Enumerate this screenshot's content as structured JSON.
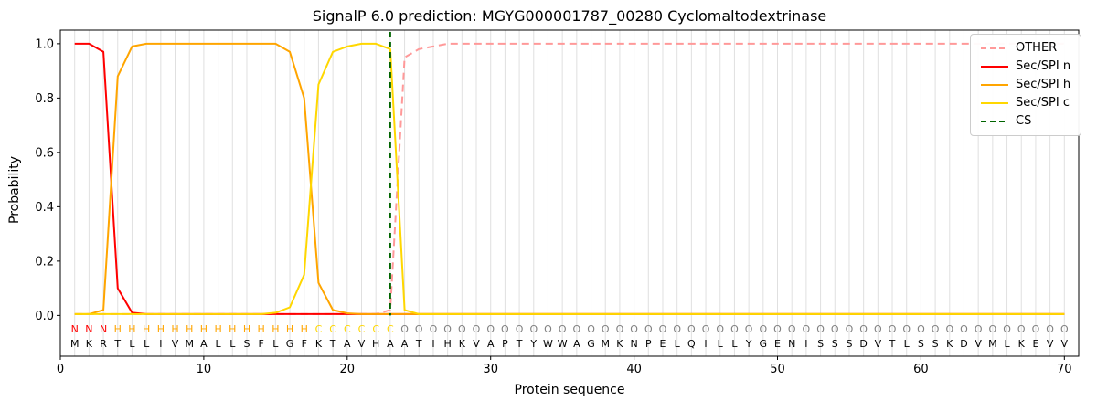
{
  "chart_data": {
    "type": "line",
    "title": "SignalP 6.0 prediction: MGYG000001787_00280 Cyclomaltodextrinase",
    "xlabel": "Protein sequence",
    "ylabel": "Probability",
    "xlim": [
      0,
      71
    ],
    "ylim": [
      -0.15,
      1.05
    ],
    "xticks": [
      0,
      10,
      20,
      30,
      40,
      50,
      60,
      70
    ],
    "yticks": [
      0.0,
      0.2,
      0.4,
      0.6,
      0.8,
      1.0
    ],
    "grid": "vertical line at every residue position",
    "legend_position": "upper right",
    "sequence": "MKRTLLIVMALLSFLGFKTAVHAATIHKVAPTYWWAGMKNPELQILLYGENISSSDVTLSSKDVMLKEVV",
    "region_labels": "NNNHHHHHHHHHHHHHHCCCCCCOOOOOOOOOOOOOOOOOOOOOOOOOOOOOOOOOOOOOOOOOOOOOO",
    "region_colors": {
      "N": "#ff0000",
      "H": "#ffa500",
      "C": "#ffd700",
      "O": "#808080"
    },
    "colors": {
      "grid": "#e0e0e0",
      "axis": "#000000",
      "sequence_text": "#000000"
    },
    "series": [
      {
        "name": "OTHER",
        "color": "#ff9999",
        "style": "dashed",
        "values": [
          0.005,
          0.005,
          0.005,
          0.005,
          0.005,
          0.005,
          0.005,
          0.005,
          0.005,
          0.005,
          0.005,
          0.005,
          0.005,
          0.005,
          0.005,
          0.005,
          0.005,
          0.005,
          0.005,
          0.005,
          0.005,
          0.005,
          0.02,
          0.95,
          0.98,
          0.99,
          1.0,
          1.0,
          1.0,
          1.0,
          1.0,
          1.0,
          1.0,
          1.0,
          1.0,
          1.0,
          1.0,
          1.0,
          1.0,
          1.0,
          1.0,
          1.0,
          1.0,
          1.0,
          1.0,
          1.0,
          1.0,
          1.0,
          1.0,
          1.0,
          1.0,
          1.0,
          1.0,
          1.0,
          1.0,
          1.0,
          1.0,
          1.0,
          1.0,
          1.0,
          1.0,
          1.0,
          1.0,
          1.0,
          1.0,
          1.0,
          1.0,
          1.0,
          1.0,
          1.0
        ]
      },
      {
        "name": "Sec/SPI n",
        "color": "#ff0000",
        "style": "solid",
        "values": [
          1.0,
          1.0,
          0.97,
          0.1,
          0.01,
          0.005,
          0.005,
          0.005,
          0.005,
          0.005,
          0.005,
          0.005,
          0.005,
          0.005,
          0.005,
          0.005,
          0.005,
          0.005,
          0.005,
          0.005,
          0.005,
          0.005,
          0.005,
          0.005,
          0.005,
          0.005,
          0.005,
          0.005,
          0.005,
          0.005,
          0.005,
          0.005,
          0.005,
          0.005,
          0.005,
          0.005,
          0.005,
          0.005,
          0.005,
          0.005,
          0.005,
          0.005,
          0.005,
          0.005,
          0.005,
          0.005,
          0.005,
          0.005,
          0.005,
          0.005,
          0.005,
          0.005,
          0.005,
          0.005,
          0.005,
          0.005,
          0.005,
          0.005,
          0.005,
          0.005,
          0.005,
          0.005,
          0.005,
          0.005,
          0.005,
          0.005,
          0.005,
          0.005,
          0.005,
          0.005
        ]
      },
      {
        "name": "Sec/SPI h",
        "color": "#ffa500",
        "style": "solid",
        "values": [
          0.005,
          0.005,
          0.02,
          0.88,
          0.99,
          1.0,
          1.0,
          1.0,
          1.0,
          1.0,
          1.0,
          1.0,
          1.0,
          1.0,
          1.0,
          0.97,
          0.8,
          0.12,
          0.02,
          0.008,
          0.005,
          0.005,
          0.005,
          0.005,
          0.005,
          0.005,
          0.005,
          0.005,
          0.005,
          0.005,
          0.005,
          0.005,
          0.005,
          0.005,
          0.005,
          0.005,
          0.005,
          0.005,
          0.005,
          0.005,
          0.005,
          0.005,
          0.005,
          0.005,
          0.005,
          0.005,
          0.005,
          0.005,
          0.005,
          0.005,
          0.005,
          0.005,
          0.005,
          0.005,
          0.005,
          0.005,
          0.005,
          0.005,
          0.005,
          0.005,
          0.005,
          0.005,
          0.005,
          0.005,
          0.005,
          0.005,
          0.005,
          0.005,
          0.005,
          0.005
        ]
      },
      {
        "name": "Sec/SPI c",
        "color": "#ffd700",
        "style": "solid",
        "values": [
          0.005,
          0.005,
          0.005,
          0.005,
          0.005,
          0.005,
          0.005,
          0.005,
          0.005,
          0.005,
          0.005,
          0.005,
          0.005,
          0.005,
          0.01,
          0.03,
          0.15,
          0.85,
          0.97,
          0.99,
          1.0,
          1.0,
          0.98,
          0.02,
          0.005,
          0.005,
          0.005,
          0.005,
          0.005,
          0.005,
          0.005,
          0.005,
          0.005,
          0.005,
          0.005,
          0.005,
          0.005,
          0.005,
          0.005,
          0.005,
          0.005,
          0.005,
          0.005,
          0.005,
          0.005,
          0.005,
          0.005,
          0.005,
          0.005,
          0.005,
          0.005,
          0.005,
          0.005,
          0.005,
          0.005,
          0.005,
          0.005,
          0.005,
          0.005,
          0.005,
          0.005,
          0.005,
          0.005,
          0.005,
          0.005,
          0.005,
          0.005,
          0.005,
          0.005,
          0.005
        ]
      },
      {
        "name": "CS",
        "color": "#006400",
        "style": "dashed",
        "type": "vline",
        "x": 23
      }
    ]
  }
}
